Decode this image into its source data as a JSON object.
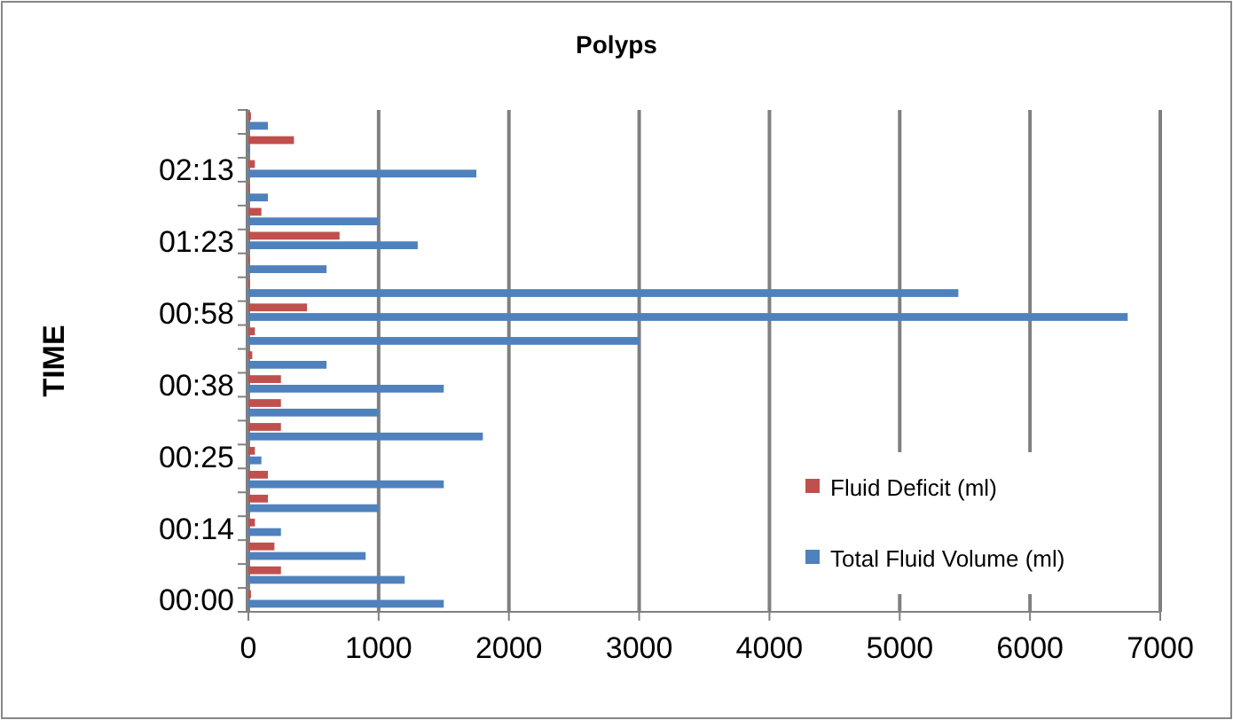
{
  "chart_data": {
    "type": "bar",
    "orientation": "horizontal",
    "title": "Polyps",
    "ylabel": "TIME",
    "categories": [
      null,
      null,
      "02:13",
      null,
      null,
      "01:23",
      null,
      null,
      "00:58",
      null,
      null,
      "00:38",
      null,
      null,
      "00:25",
      null,
      null,
      "00:14",
      null,
      null,
      "00:00"
    ],
    "series": [
      {
        "name": "Fluid Deficit (ml)",
        "color": "#c0504d",
        "values": [
          20,
          350,
          50,
          10,
          100,
          700,
          10,
          10,
          450,
          50,
          30,
          250,
          250,
          250,
          50,
          150,
          150,
          50,
          200,
          250,
          20
        ]
      },
      {
        "name": "Total Fluid Volume (ml)",
        "color": "#4f81bd",
        "values": [
          150,
          10,
          1750,
          150,
          1000,
          1300,
          600,
          5450,
          6750,
          3000,
          600,
          1500,
          1000,
          1800,
          100,
          1500,
          1000,
          250,
          900,
          1200,
          1500
        ]
      }
    ],
    "xlim": [
      0,
      7000
    ],
    "xticks": [
      0,
      1000,
      2000,
      3000,
      4000,
      5000,
      6000,
      7000
    ],
    "grid": "x",
    "legend": "bottom right"
  }
}
